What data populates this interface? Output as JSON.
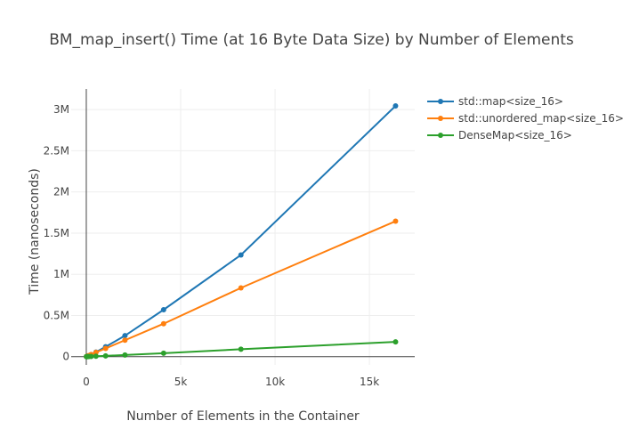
{
  "chart_data": {
    "type": "line",
    "title": "BM_map_insert() Time (at 16 Byte Data Size) by Number of Elements",
    "xlabel": "Number of Elements in the Container",
    "ylabel": "Time (nanoseconds)",
    "xlim": [
      -800,
      17400
    ],
    "ylim": [
      -100000,
      3250000
    ],
    "x_ticks": [
      0,
      5000,
      10000,
      15000
    ],
    "x_tick_labels": [
      "0",
      "5k",
      "10k",
      "15k"
    ],
    "y_ticks": [
      0,
      500000,
      1000000,
      1500000,
      2000000,
      2500000,
      3000000
    ],
    "y_tick_labels": [
      "0",
      "0.5M",
      "1M",
      "1.5M",
      "2M",
      "2.5M",
      "3M"
    ],
    "grid": true,
    "legend_position": "top-right",
    "x": [
      8,
      16,
      32,
      64,
      128,
      256,
      512,
      1024,
      2048,
      4096,
      8192,
      16384
    ],
    "series": [
      {
        "name": "std::map<size_16>",
        "color": "#1f77b4",
        "values": [
          500,
          1100,
          2300,
          5000,
          11000,
          25000,
          55000,
          120000,
          255000,
          570000,
          1235000,
          3045000
        ]
      },
      {
        "name": "std::unordered_map<size_16>",
        "color": "#ff7f0e",
        "values": [
          800,
          1600,
          3200,
          6500,
          13000,
          26000,
          52000,
          100000,
          200000,
          400000,
          835000,
          1645000
        ]
      },
      {
        "name": "DenseMap<size_16>",
        "color": "#2ca02c",
        "values": [
          100,
          200,
          400,
          800,
          1500,
          3000,
          5500,
          10000,
          20000,
          42000,
          90000,
          180000
        ]
      }
    ]
  }
}
